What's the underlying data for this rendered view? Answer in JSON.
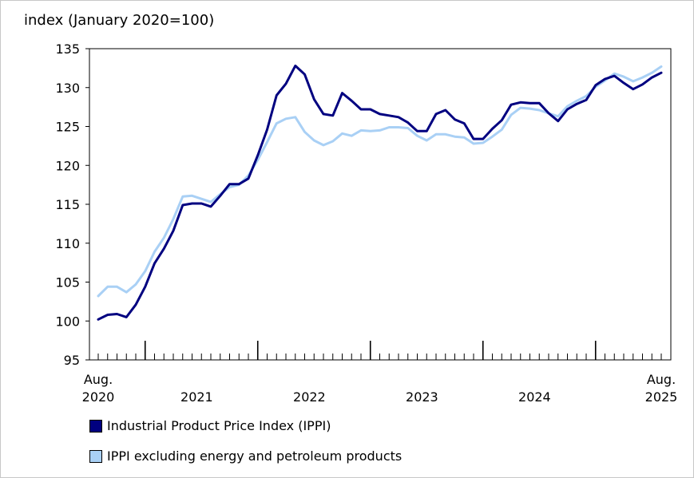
{
  "chart_data": {
    "type": "line",
    "ylabel": "index (January 2020=100)",
    "ylim": [
      95,
      135
    ],
    "yticks": [
      95,
      100,
      105,
      110,
      115,
      120,
      125,
      130,
      135
    ],
    "start": "2020-08",
    "end": "2025-08",
    "year_labels": [
      {
        "label": "2021",
        "month_index": 10.5
      },
      {
        "label": "2022",
        "month_index": 22.5
      },
      {
        "label": "2023",
        "month_index": 34.5
      },
      {
        "label": "2024",
        "month_index": 46.5
      }
    ],
    "endpoint_labels": [
      {
        "month": "Aug.",
        "year": "2020",
        "month_index": 0
      },
      {
        "month": "Aug.",
        "year": "2025",
        "month_index": 60
      }
    ],
    "year_boundaries": [
      5,
      17,
      29,
      41,
      53
    ],
    "series": [
      {
        "name": "Industrial Product Price Index (IPPI)",
        "color": "#000080",
        "values": [
          100.2,
          100.8,
          100.9,
          100.5,
          102.1,
          104.4,
          107.4,
          109.3,
          111.6,
          114.9,
          115.1,
          115.1,
          114.7,
          116.1,
          117.6,
          117.6,
          118.3,
          121.3,
          124.6,
          129.0,
          130.5,
          132.8,
          131.7,
          128.5,
          126.6,
          126.4,
          129.3,
          128.3,
          127.2,
          127.2,
          126.6,
          126.4,
          126.2,
          125.5,
          124.4,
          124.4,
          126.6,
          127.1,
          125.9,
          125.4,
          123.4,
          123.4,
          124.7,
          125.8,
          127.8,
          128.1,
          128.0,
          128.0,
          126.7,
          125.7,
          127.2,
          127.9,
          128.4,
          130.3,
          131.1,
          131.5,
          130.6,
          129.8,
          130.4,
          131.3,
          131.9
        ]
      },
      {
        "name": "IPPI excluding energy and petroleum products",
        "color": "#a9d0f5",
        "values": [
          103.2,
          104.4,
          104.4,
          103.7,
          104.7,
          106.4,
          108.9,
          110.7,
          113.1,
          116.0,
          116.1,
          115.7,
          115.3,
          116.3,
          117.2,
          117.5,
          118.7,
          120.7,
          123.0,
          125.4,
          126.0,
          126.2,
          124.3,
          123.2,
          122.6,
          123.1,
          124.1,
          123.8,
          124.5,
          124.4,
          124.5,
          124.9,
          124.9,
          124.8,
          123.8,
          123.2,
          124.0,
          124.0,
          123.7,
          123.6,
          122.8,
          122.9,
          123.7,
          124.6,
          126.5,
          127.4,
          127.3,
          127.1,
          126.7,
          126.3,
          127.6,
          128.3,
          128.9,
          130.1,
          130.9,
          131.8,
          131.4,
          130.8,
          131.3,
          131.9,
          132.7
        ]
      }
    ]
  }
}
